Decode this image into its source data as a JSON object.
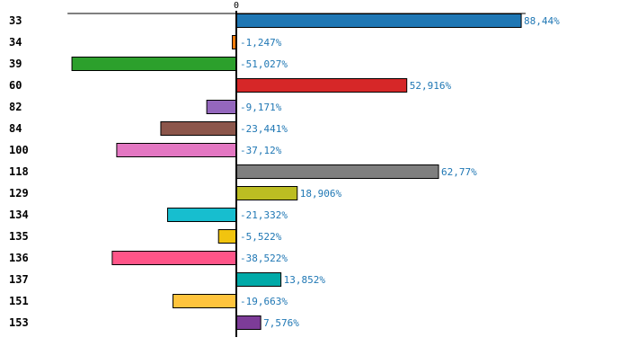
{
  "chart_data": {
    "type": "bar",
    "orientation": "horizontal",
    "title": "",
    "xlabel": "",
    "ylabel": "",
    "xlim": [
      -52.4,
      89.8
    ],
    "x_ticks": [
      "0"
    ],
    "grid": false,
    "categories": [
      "33",
      "34",
      "39",
      "60",
      "82",
      "84",
      "100",
      "118",
      "129",
      "134",
      "135",
      "136",
      "137",
      "151",
      "153"
    ],
    "highlighted_category": "100",
    "highlight_color": "#ff0000",
    "values": [
      88.44,
      -1.247,
      -51.027,
      52.916,
      -9.171,
      -23.441,
      -37.12,
      62.77,
      18.906,
      -21.332,
      -5.522,
      -38.522,
      13.852,
      -19.663,
      7.576
    ],
    "labels": [
      "88,44%",
      "-1,247%",
      "-51,027%",
      "52,916%",
      "-9,171%",
      "-23,441%",
      "-37,12%",
      "62,77%",
      "18,906%",
      "-21,332%",
      "-5,522%",
      "-38,522%",
      "13,852%",
      "-19,663%",
      "7,576%"
    ],
    "colors": [
      "#1f77b4",
      "#ff7f0e",
      "#2ca02c",
      "#d62728",
      "#9467bd",
      "#8c564b",
      "#e377c2",
      "#7f7f7f",
      "#bcbd22",
      "#17becf",
      "#f1c40f",
      "#ff5588",
      "#00aaa8",
      "#ffc43d",
      "#7d3c98"
    ],
    "label_color": "#1f77b4"
  }
}
